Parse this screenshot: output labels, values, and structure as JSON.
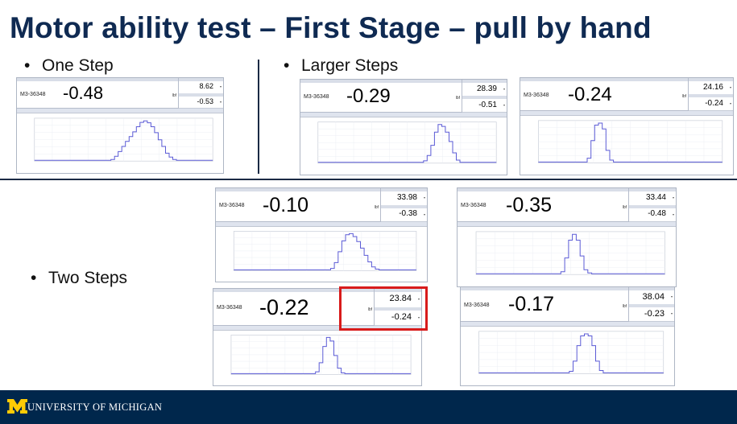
{
  "slide": {
    "title": "Motor ability test – First Stage – pull by hand",
    "bullets": {
      "one_step": "One Step",
      "larger_steps": "Larger Steps",
      "two_steps": "Two Steps",
      "bullet_char": "•"
    }
  },
  "footer": {
    "org": "UNIVERSITY OF MICHIGAN",
    "logo_icon": "block-m-logo-icon",
    "logo_color": "#ffcb05",
    "background": "#00274c"
  },
  "colors": {
    "title": "#0f2a52",
    "trace": "#5b5bd6",
    "highlight": "#d81b1b"
  },
  "panels": [
    {
      "id": "p1",
      "device": "M3-36348",
      "reading": "-0.48",
      "unit": "lbf",
      "peak": "8.62",
      "low": "-0.53",
      "trace": [
        0,
        0,
        0,
        0,
        0,
        0,
        0,
        0,
        0,
        0,
        0,
        0,
        0,
        0,
        0,
        0,
        0,
        0,
        0,
        0,
        0,
        0.02,
        0.1,
        0.22,
        0.35,
        0.48,
        0.6,
        0.72,
        0.85,
        0.96,
        1.0,
        0.95,
        0.85,
        0.7,
        0.52,
        0.35,
        0.18,
        0.08,
        0.02,
        0,
        0,
        0,
        0,
        0,
        0,
        0,
        0,
        0,
        0,
        0
      ]
    },
    {
      "id": "p2",
      "device": "M3-36348",
      "reading": "-0.29",
      "unit": "lbf",
      "peak": "28.39",
      "low": "-0.51",
      "trace": [
        0,
        0,
        0,
        0,
        0,
        0,
        0,
        0,
        0,
        0,
        0,
        0,
        0,
        0,
        0,
        0,
        0,
        0,
        0,
        0,
        0,
        0,
        0,
        0,
        0,
        0,
        0,
        0,
        0,
        0.04,
        0.18,
        0.45,
        0.8,
        1.0,
        0.95,
        0.8,
        0.55,
        0.25,
        0.06,
        0,
        0,
        0,
        0,
        0,
        0,
        0,
        0,
        0,
        0,
        0
      ]
    },
    {
      "id": "p3",
      "device": "M3-36348",
      "reading": "-0.24",
      "unit": "lbf",
      "peak": "24.16",
      "low": "-0.24",
      "trace": [
        0,
        0,
        0,
        0,
        0,
        0,
        0,
        0,
        0,
        0,
        0,
        0,
        0,
        0.1,
        0.55,
        0.95,
        1.0,
        0.85,
        0.3,
        0.05,
        0,
        0,
        0,
        0,
        0,
        0,
        0,
        0,
        0,
        0,
        0,
        0,
        0,
        0,
        0,
        0,
        0,
        0,
        0,
        0,
        0,
        0,
        0,
        0,
        0,
        0,
        0,
        0,
        0,
        0
      ]
    },
    {
      "id": "p4",
      "device": "M3-36348",
      "reading": "-0.10",
      "unit": "lbf",
      "peak": "33.98",
      "low": "-0.38",
      "trace": [
        0,
        0,
        0,
        0,
        0,
        0,
        0,
        0,
        0,
        0,
        0,
        0,
        0,
        0,
        0,
        0,
        0,
        0,
        0,
        0,
        0,
        0,
        0,
        0,
        0,
        0,
        0.04,
        0.2,
        0.5,
        0.8,
        0.97,
        1.0,
        0.92,
        0.78,
        0.6,
        0.4,
        0.22,
        0.08,
        0.02,
        0,
        0,
        0,
        0,
        0,
        0,
        0,
        0,
        0,
        0,
        0
      ]
    },
    {
      "id": "p5",
      "device": "M3-36348",
      "reading": "-0.35",
      "unit": "lbf",
      "peak": "33.44",
      "low": "-0.48",
      "trace": [
        0,
        0,
        0,
        0,
        0,
        0,
        0,
        0,
        0,
        0,
        0,
        0,
        0,
        0,
        0,
        0,
        0,
        0,
        0,
        0,
        0,
        0,
        0.05,
        0.4,
        0.85,
        1.0,
        0.85,
        0.45,
        0.1,
        0.02,
        0,
        0,
        0,
        0,
        0,
        0,
        0,
        0,
        0,
        0,
        0,
        0,
        0,
        0,
        0,
        0,
        0,
        0,
        0,
        0
      ]
    },
    {
      "id": "p6",
      "device": "M3-36348",
      "reading": "-0.22",
      "unit": "lbf",
      "peak": "23.84",
      "low": "-0.24",
      "trace": [
        0,
        0,
        0,
        0,
        0,
        0,
        0,
        0,
        0,
        0,
        0,
        0,
        0,
        0,
        0,
        0,
        0,
        0,
        0,
        0,
        0,
        0,
        0,
        0.05,
        0.3,
        0.75,
        1.0,
        0.9,
        0.5,
        0.15,
        0.02,
        0,
        0,
        0,
        0,
        0,
        0,
        0,
        0,
        0,
        0,
        0,
        0,
        0,
        0,
        0,
        0,
        0,
        0,
        0
      ]
    },
    {
      "id": "p7",
      "device": "M3-36348",
      "reading": "-0.17",
      "unit": "lbf",
      "peak": "38.04",
      "low": "-0.23",
      "trace": [
        0,
        0,
        0,
        0,
        0,
        0,
        0,
        0,
        0,
        0,
        0,
        0,
        0,
        0,
        0,
        0,
        0,
        0,
        0,
        0,
        0,
        0,
        0,
        0,
        0.04,
        0.3,
        0.7,
        0.95,
        1.0,
        0.95,
        0.7,
        0.3,
        0.06,
        0,
        0,
        0,
        0,
        0,
        0,
        0,
        0,
        0,
        0,
        0,
        0,
        0,
        0,
        0,
        0,
        0
      ]
    }
  ]
}
